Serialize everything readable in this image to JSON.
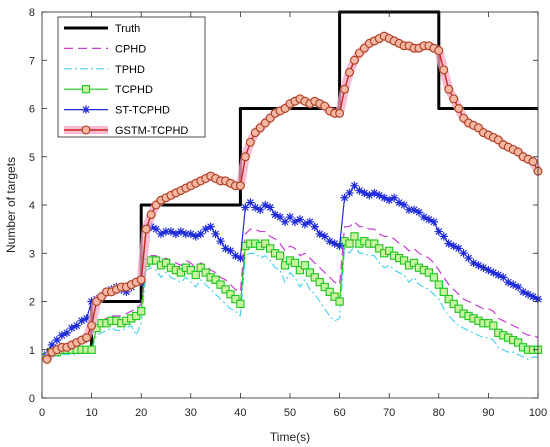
{
  "chart_data": {
    "type": "line",
    "xlabel": "Time(s)",
    "ylabel": "Number of targets",
    "xlim": [
      0,
      100
    ],
    "ylim": [
      0,
      8
    ],
    "xticks": [
      0,
      10,
      20,
      30,
      40,
      50,
      60,
      70,
      80,
      90,
      100
    ],
    "yticks": [
      0,
      1,
      2,
      3,
      4,
      5,
      6,
      7,
      8
    ],
    "grid": false,
    "legend": "top-left",
    "x": [
      1,
      2,
      3,
      4,
      5,
      6,
      7,
      8,
      9,
      10,
      11,
      12,
      13,
      14,
      15,
      16,
      17,
      18,
      19,
      20,
      21,
      22,
      23,
      24,
      25,
      26,
      27,
      28,
      29,
      30,
      31,
      32,
      33,
      34,
      35,
      36,
      37,
      38,
      39,
      40,
      41,
      42,
      43,
      44,
      45,
      46,
      47,
      48,
      49,
      50,
      51,
      52,
      53,
      54,
      55,
      56,
      57,
      58,
      59,
      60,
      61,
      62,
      63,
      64,
      65,
      66,
      67,
      68,
      69,
      70,
      71,
      72,
      73,
      74,
      75,
      76,
      77,
      78,
      79,
      80,
      81,
      82,
      83,
      84,
      85,
      86,
      87,
      88,
      89,
      90,
      91,
      92,
      93,
      94,
      95,
      96,
      97,
      98,
      99,
      100
    ],
    "series": [
      {
        "name": "Truth",
        "color": "#000000",
        "x": [
          1,
          10,
          10,
          20,
          20,
          40,
          40,
          60,
          60,
          80,
          80,
          100
        ],
        "values": [
          1,
          1,
          2,
          2,
          4,
          4,
          6,
          6,
          8,
          8,
          6,
          6
        ]
      },
      {
        "name": "CPHD",
        "color": "#c43fd3",
        "values": [
          0.85,
          1.0,
          1.0,
          1.05,
          1.05,
          1.1,
          1.1,
          1.15,
          1.15,
          1.3,
          1.55,
          1.6,
          1.65,
          1.7,
          1.7,
          1.7,
          1.75,
          1.8,
          1.85,
          1.95,
          2.9,
          2.95,
          2.95,
          2.85,
          2.9,
          2.85,
          2.8,
          2.75,
          2.85,
          2.8,
          2.7,
          2.8,
          2.75,
          2.65,
          2.6,
          2.5,
          2.45,
          2.35,
          2.25,
          2.2,
          3.4,
          3.5,
          3.5,
          3.45,
          3.45,
          3.35,
          3.3,
          3.2,
          3.05,
          3.15,
          3.1,
          2.95,
          3.0,
          2.9,
          2.8,
          2.7,
          2.6,
          2.5,
          2.4,
          2.35,
          3.55,
          3.55,
          3.65,
          3.55,
          3.55,
          3.5,
          3.5,
          3.4,
          3.35,
          3.35,
          3.3,
          3.2,
          3.15,
          3.05,
          3.1,
          3.0,
          2.95,
          2.9,
          2.8,
          2.65,
          2.5,
          2.35,
          2.25,
          2.15,
          2.05,
          2.0,
          1.95,
          1.9,
          1.85,
          1.85,
          1.8,
          1.65,
          1.6,
          1.55,
          1.5,
          1.45,
          1.35,
          1.3,
          1.3,
          1.25
        ]
      },
      {
        "name": "TPHD",
        "color": "#4fd4ec",
        "values": [
          0.8,
          0.85,
          0.85,
          0.9,
          0.9,
          0.9,
          0.9,
          0.95,
          0.95,
          1.0,
          1.3,
          1.35,
          1.4,
          1.45,
          1.4,
          1.4,
          1.45,
          1.5,
          1.3,
          1.55,
          2.65,
          2.7,
          2.65,
          2.5,
          2.6,
          2.5,
          2.45,
          2.4,
          2.5,
          2.4,
          2.3,
          2.45,
          2.35,
          2.25,
          2.15,
          2.05,
          1.95,
          1.85,
          1.8,
          1.7,
          2.95,
          3.0,
          3.0,
          2.9,
          2.95,
          2.85,
          2.7,
          2.65,
          2.4,
          2.6,
          2.5,
          2.3,
          2.45,
          2.25,
          2.15,
          2.0,
          1.85,
          1.7,
          1.6,
          1.65,
          3.1,
          3.0,
          3.15,
          3.0,
          3.0,
          2.95,
          2.95,
          2.8,
          2.7,
          2.75,
          2.65,
          2.6,
          2.55,
          2.4,
          2.5,
          2.35,
          2.3,
          2.25,
          2.15,
          2.05,
          1.85,
          1.7,
          1.6,
          1.5,
          1.45,
          1.4,
          1.35,
          1.3,
          1.25,
          1.25,
          1.2,
          1.05,
          1.0,
          0.95,
          0.95,
          0.9,
          0.85,
          0.8,
          0.85,
          0.85
        ]
      },
      {
        "name": "TCPHD",
        "color": "#1ec41e",
        "marker_fill": "#c8f2a0",
        "values": [
          0.85,
          0.95,
          0.95,
          1.0,
          1.0,
          1.0,
          1.0,
          1.0,
          1.0,
          1.0,
          1.45,
          1.55,
          1.55,
          1.6,
          1.6,
          1.55,
          1.6,
          1.65,
          1.7,
          1.8,
          2.8,
          2.85,
          2.85,
          2.75,
          2.8,
          2.7,
          2.65,
          2.6,
          2.7,
          2.65,
          2.55,
          2.7,
          2.6,
          2.5,
          2.45,
          2.35,
          2.25,
          2.15,
          2.05,
          1.95,
          3.15,
          3.2,
          3.2,
          3.15,
          3.2,
          3.1,
          3.0,
          2.95,
          2.75,
          2.85,
          2.8,
          2.65,
          2.75,
          2.6,
          2.5,
          2.4,
          2.3,
          2.2,
          2.1,
          2.0,
          3.25,
          3.2,
          3.35,
          3.2,
          3.25,
          3.2,
          3.2,
          3.1,
          3.0,
          3.05,
          2.95,
          2.9,
          2.85,
          2.75,
          2.8,
          2.7,
          2.65,
          2.6,
          2.5,
          2.35,
          2.2,
          2.05,
          1.95,
          1.85,
          1.75,
          1.7,
          1.65,
          1.6,
          1.55,
          1.55,
          1.5,
          1.35,
          1.3,
          1.25,
          1.2,
          1.15,
          1.05,
          1.0,
          1.0,
          1.0
        ]
      },
      {
        "name": "ST-TCPHD",
        "color": "#1f2bd8",
        "values": [
          0.9,
          1.1,
          1.2,
          1.3,
          1.35,
          1.45,
          1.5,
          1.6,
          1.65,
          2.0,
          2.05,
          2.1,
          2.2,
          2.25,
          2.3,
          2.25,
          2.2,
          2.3,
          2.4,
          2.4,
          3.5,
          3.55,
          3.5,
          3.4,
          3.45,
          3.45,
          3.4,
          3.45,
          3.4,
          3.4,
          3.35,
          3.4,
          3.5,
          3.55,
          3.4,
          3.25,
          3.1,
          3.05,
          2.95,
          2.9,
          3.95,
          4.05,
          3.95,
          3.9,
          4.0,
          3.95,
          3.8,
          3.75,
          3.65,
          3.75,
          3.65,
          3.7,
          3.6,
          3.65,
          3.55,
          3.4,
          3.35,
          3.25,
          3.2,
          3.15,
          4.15,
          4.25,
          4.4,
          4.3,
          4.25,
          4.2,
          4.25,
          4.2,
          4.15,
          4.1,
          4.15,
          4.05,
          4.0,
          3.9,
          3.9,
          3.85,
          3.75,
          3.7,
          3.65,
          3.45,
          3.35,
          3.2,
          3.15,
          3.1,
          3.0,
          2.9,
          2.8,
          2.75,
          2.7,
          2.65,
          2.6,
          2.55,
          2.5,
          2.4,
          2.35,
          2.3,
          2.2,
          2.15,
          2.1,
          2.05
        ]
      },
      {
        "name": "GSTM-TCPHD",
        "color": "#c8281e",
        "marker_color": "#a8401e",
        "marker_fill": "#f5b7a4",
        "highlight": "#f6a5c4",
        "values": [
          0.8,
          0.95,
          1.0,
          1.05,
          1.05,
          1.1,
          1.15,
          1.2,
          1.25,
          1.5,
          2.0,
          2.1,
          2.2,
          2.2,
          2.25,
          2.3,
          2.3,
          2.35,
          2.4,
          2.45,
          3.5,
          3.8,
          4.0,
          4.1,
          4.15,
          4.2,
          4.25,
          4.3,
          4.35,
          4.4,
          4.45,
          4.5,
          4.55,
          4.6,
          4.55,
          4.5,
          4.5,
          4.45,
          4.4,
          4.4,
          5.0,
          5.3,
          5.5,
          5.6,
          5.7,
          5.8,
          5.9,
          5.95,
          6.0,
          6.1,
          6.15,
          6.2,
          6.15,
          6.1,
          6.15,
          6.1,
          6.05,
          5.95,
          5.9,
          5.9,
          6.4,
          6.75,
          7.0,
          7.15,
          7.25,
          7.35,
          7.4,
          7.45,
          7.5,
          7.45,
          7.4,
          7.35,
          7.3,
          7.3,
          7.25,
          7.25,
          7.3,
          7.3,
          7.25,
          7.2,
          6.8,
          6.4,
          6.2,
          6.0,
          5.8,
          5.7,
          5.65,
          5.6,
          5.5,
          5.45,
          5.4,
          5.35,
          5.25,
          5.2,
          5.15,
          5.1,
          5.0,
          4.95,
          4.9,
          4.7
        ]
      }
    ]
  }
}
